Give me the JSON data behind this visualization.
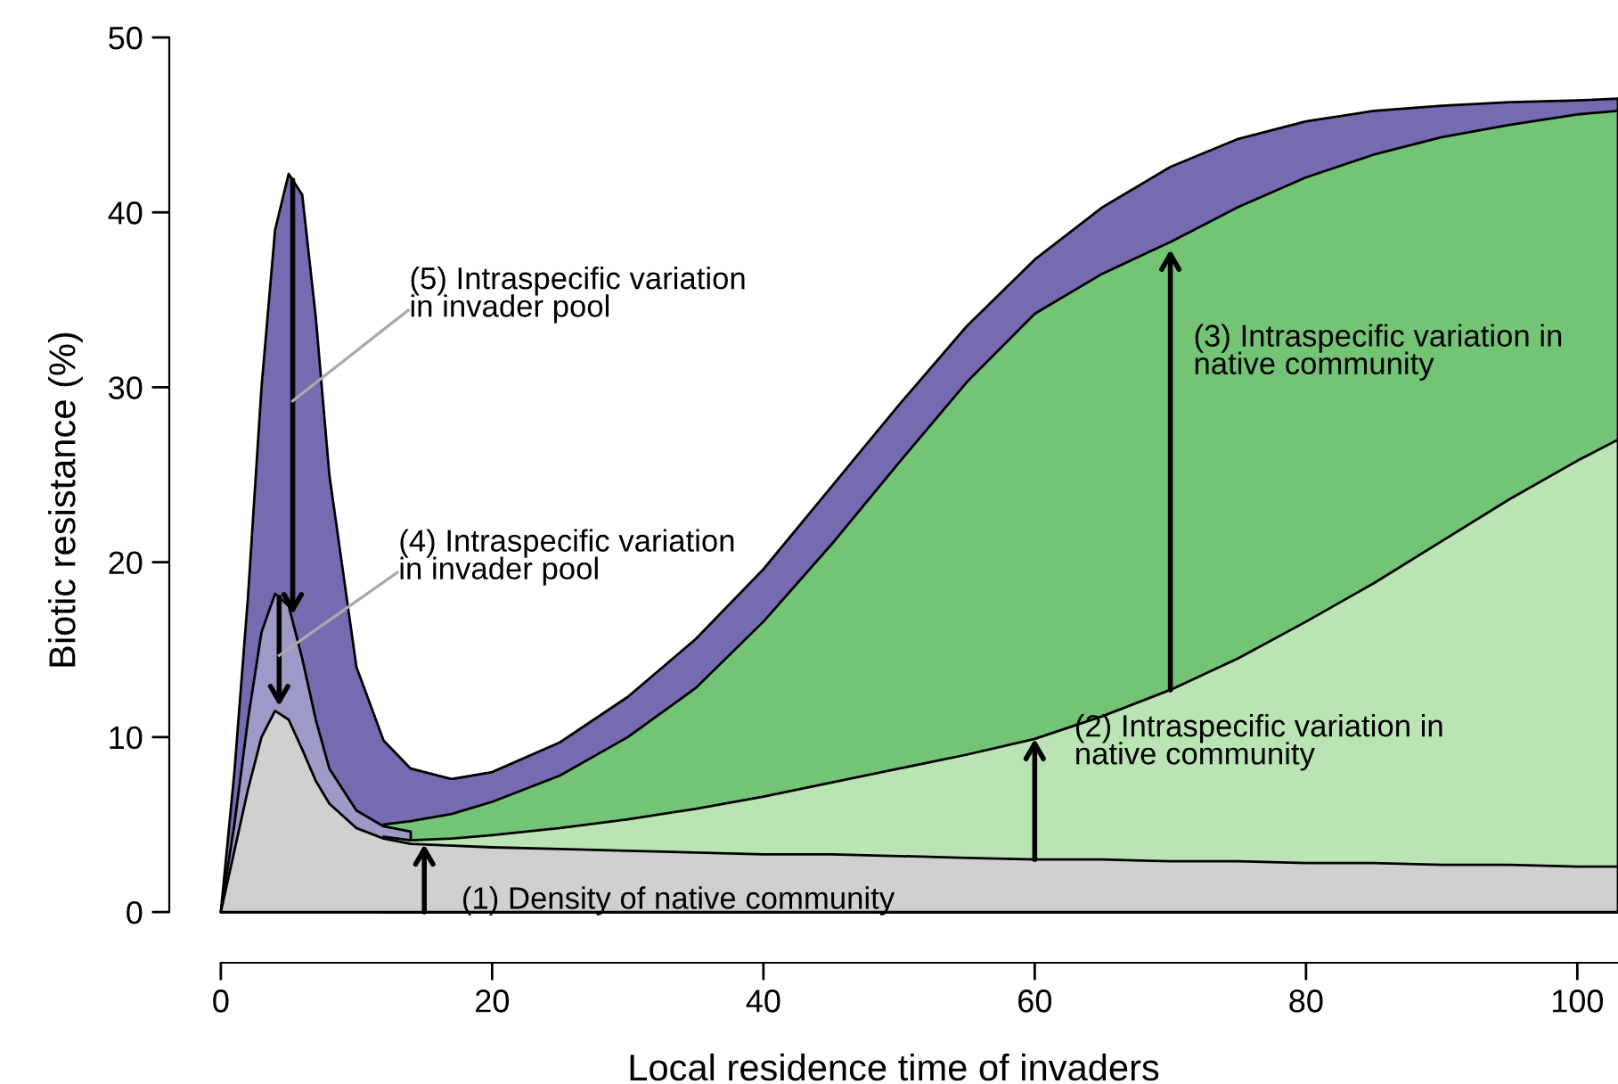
{
  "chart_data": {
    "type": "area",
    "xlabel": "Local residence time of invaders",
    "ylabel": "Biotic resistance (%)",
    "x": [
      0,
      1,
      2,
      3,
      4,
      5,
      6,
      7,
      8,
      10,
      12,
      14,
      17,
      20,
      25,
      30,
      35,
      40,
      45,
      50,
      55,
      60,
      65,
      70,
      75,
      80,
      85,
      90,
      95,
      100,
      103
    ],
    "series": [
      {
        "color": "#756bb1",
        "values": [
          0,
          8,
          18,
          30,
          39,
          42.2,
          41,
          34,
          25,
          14,
          9.8,
          8.2,
          7.6,
          8.0,
          9.7,
          12.3,
          15.6,
          19.6,
          24.3,
          29,
          33.5,
          37.3,
          40.3,
          42.6,
          44.2,
          45.2,
          45.8,
          46.1,
          46.3,
          46.4,
          46.5
        ]
      },
      {
        "color": "#74c476",
        "values": [
          null,
          null,
          null,
          null,
          null,
          null,
          null,
          null,
          null,
          null,
          5.0,
          5.2,
          5.6,
          6.3,
          7.8,
          10,
          12.8,
          16.6,
          21,
          25.7,
          30.3,
          34.2,
          36.5,
          38.3,
          40.3,
          42,
          43.3,
          44.3,
          45,
          45.6,
          45.8
        ]
      },
      {
        "color": "#9e9ac8",
        "values": [
          0,
          5,
          11,
          16,
          18.2,
          17.5,
          14.5,
          11,
          8.2,
          5.8,
          4.9,
          4.6,
          null,
          null,
          null,
          null,
          null,
          null,
          null,
          null,
          null,
          null,
          null,
          null,
          null,
          null,
          null,
          null,
          null,
          null,
          null
        ]
      },
      {
        "color": "#bae4b3",
        "values": [
          null,
          null,
          null,
          null,
          null,
          null,
          null,
          null,
          null,
          null,
          4.3,
          4.1,
          4.2,
          4.4,
          4.8,
          5.3,
          5.9,
          6.6,
          7.4,
          8.2,
          9.0,
          9.9,
          11.2,
          12.7,
          14.5,
          16.6,
          18.8,
          21.2,
          23.6,
          25.8,
          27
        ]
      },
      {
        "color": "#d0d0d0",
        "values": [
          0,
          3.5,
          7,
          10,
          11.5,
          11,
          9.3,
          7.5,
          6.2,
          4.8,
          4.2,
          3.9,
          3.8,
          3.7,
          3.6,
          3.5,
          3.4,
          3.3,
          3.3,
          3.2,
          3.1,
          3.0,
          3.0,
          2.9,
          2.9,
          2.8,
          2.8,
          2.7,
          2.7,
          2.6,
          2.6
        ]
      }
    ],
    "xlim": [
      -3.8,
      103
    ],
    "ylim": [
      -2.9,
      50
    ],
    "xticks": [
      0,
      20,
      40,
      60,
      80,
      100
    ],
    "yticks": [
      0,
      10,
      20,
      30,
      40,
      50
    ],
    "grid": false,
    "annotations": [
      {
        "text": "(1) Density of native community",
        "x": 15,
        "y": 3.9
      },
      {
        "text": "(2) Intraspecific variation in\nnative community",
        "x": 60,
        "y": 9.9
      },
      "(3) Intraspecific variation in\nnative community",
      "(4) Intraspecific variation\nin invader pool",
      "(5) Intraspecific variation\nin invader pool"
    ]
  }
}
